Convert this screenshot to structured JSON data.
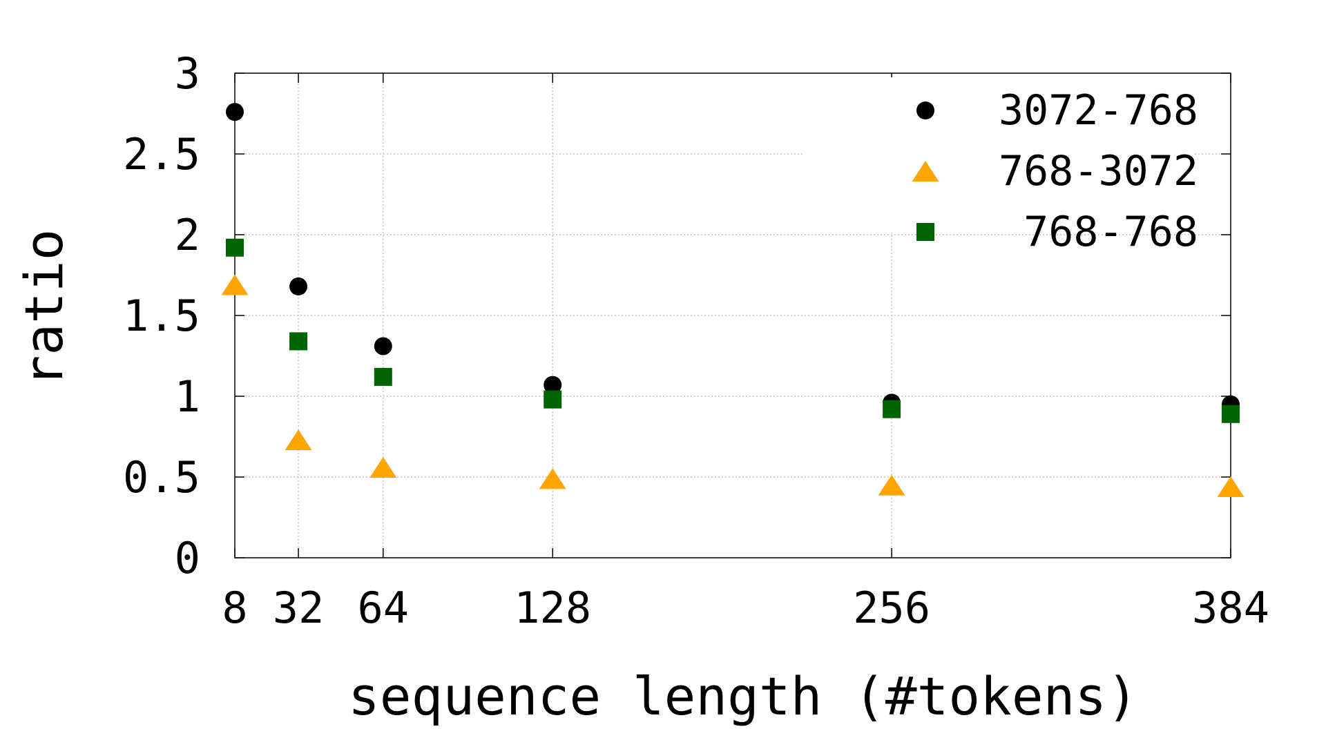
{
  "chart_data": {
    "type": "scatter",
    "title": "",
    "xlabel": "sequence length (#tokens)",
    "ylabel": "ratio",
    "x_ticks": [
      8,
      32,
      64,
      128,
      256,
      384
    ],
    "y_ticks": [
      0,
      0.5,
      1,
      1.5,
      2,
      2.5,
      3
    ],
    "y_tick_labels": [
      "0",
      "0.5",
      "1",
      "1.5",
      "2",
      "2.5",
      "3"
    ],
    "xlim": [
      8,
      384
    ],
    "ylim": [
      0,
      3
    ],
    "grid": true,
    "legend_position": "top-right",
    "x": [
      8,
      32,
      64,
      128,
      256,
      384
    ],
    "series": [
      {
        "name": "3072-768",
        "marker": "circle",
        "color": "#000000",
        "values": [
          2.76,
          1.68,
          1.31,
          1.07,
          0.96,
          0.95
        ]
      },
      {
        "name": "768-3072",
        "marker": "triangle",
        "color": "#ffa500",
        "values": [
          1.69,
          0.73,
          0.56,
          0.49,
          0.45,
          0.44
        ]
      },
      {
        "name": "768-768",
        "marker": "square",
        "color": "#006400",
        "values": [
          1.92,
          1.34,
          1.12,
          0.98,
          0.92,
          0.89
        ]
      }
    ]
  }
}
